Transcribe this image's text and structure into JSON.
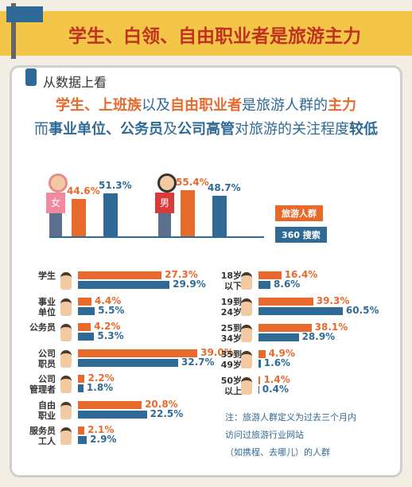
{
  "title": "学生、白领、自由职业者是旅游主力",
  "subtitle": "从数据上看",
  "headline": [
    [
      {
        "text": "学生、上班族",
        "emphasis": "orange"
      },
      {
        "text": "以及",
        "emphasis": "normal"
      },
      {
        "text": "自由职业者",
        "emphasis": "orange"
      },
      {
        "text": "是旅游人群的",
        "emphasis": "normal"
      },
      {
        "text": "主力",
        "emphasis": "orange"
      }
    ],
    [
      {
        "text": "而",
        "emphasis": "normal"
      },
      {
        "text": "事业单位、公务员",
        "emphasis": "bold"
      },
      {
        "text": "及",
        "emphasis": "normal"
      },
      {
        "text": "公司高管",
        "emphasis": "bold"
      },
      {
        "text": "对旅游的关注程度",
        "emphasis": "normal"
      },
      {
        "text": "较低",
        "emphasis": "bold"
      }
    ]
  ],
  "note": [
    "注：旅游人群定义为过去三个月内",
    "访问过旅游行业网站",
    "（如携程、去哪儿）的人群"
  ],
  "chart_data": [
    {
      "type": "bar",
      "categories": [
        "女",
        "男"
      ],
      "series": [
        {
          "name": "旅游人群",
          "color": "#e8692c",
          "values": [
            44.6,
            55.4
          ],
          "value_labels": [
            "44.6%",
            "55.4%"
          ]
        },
        {
          "name": "360 搜索",
          "color": "#2f6a96",
          "values": [
            51.3,
            48.7
          ],
          "value_labels": [
            "51.3%",
            "48.7%"
          ]
        }
      ]
    },
    {
      "type": "hbar",
      "categories": [
        "学生",
        "事业\n单位",
        "公务员",
        "公司\n职员",
        "公司\n管理者",
        "自由\n职业",
        "服务员\n工人"
      ],
      "series": [
        {
          "color": "#e8692c",
          "values": [
            27.3,
            4.4,
            4.2,
            39.0,
            2.2,
            20.8,
            2.1
          ],
          "value_labels": [
            "27.3%",
            "4.4%",
            "4.2%",
            "39.0%",
            "2.2%",
            "20.8%",
            "2.1%"
          ]
        },
        {
          "color": "#2f6a96",
          "values": [
            29.9,
            5.5,
            5.3,
            32.7,
            1.8,
            22.5,
            2.9
          ],
          "value_labels": [
            "29.9%",
            "5.5%",
            "5.3%",
            "32.7%",
            "1.8%",
            "22.5%",
            "2.9%"
          ]
        }
      ]
    },
    {
      "type": "hbar",
      "categories": [
        "18岁\n以下",
        "19到\n24岁",
        "25到\n34岁",
        "35到\n49岁",
        "50岁\n以上"
      ],
      "series": [
        {
          "color": "#e8692c",
          "values": [
            16.4,
            39.3,
            38.1,
            4.9,
            1.4
          ],
          "value_labels": [
            "16.4%",
            "39.3%",
            "38.1%",
            "4.9%",
            "1.4%"
          ]
        },
        {
          "color": "#2f6a96",
          "values": [
            8.6,
            60.5,
            28.9,
            1.6,
            0.4
          ],
          "value_labels": [
            "8.6%",
            "60.5%",
            "28.9%",
            "1.6%",
            "0.4%"
          ]
        }
      ]
    }
  ]
}
